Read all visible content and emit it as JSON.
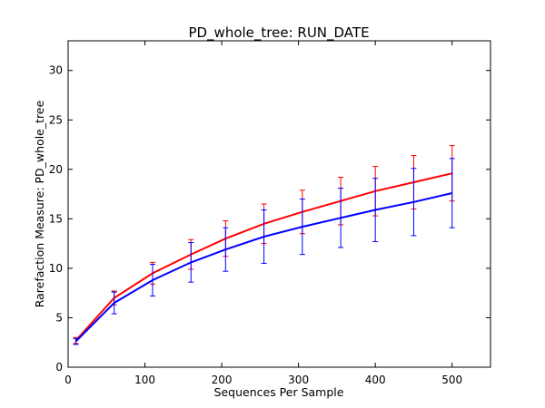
{
  "chart_data": {
    "type": "line",
    "title": "PD_whole_tree: RUN_DATE",
    "xlabel": "Sequences Per Sample",
    "ylabel": "Rarefaction Measure: PD_whole_tree",
    "xlim": [
      0,
      550
    ],
    "ylim": [
      0,
      33
    ],
    "xticks": [
      0,
      100,
      200,
      300,
      400,
      500
    ],
    "yticks": [
      0,
      5,
      10,
      15,
      20,
      25,
      30
    ],
    "grid": false,
    "x": [
      10,
      60,
      110,
      160,
      205,
      255,
      305,
      355,
      400,
      450,
      500
    ],
    "series": [
      {
        "color": "#ff0000",
        "values": [
          2.7,
          7.0,
          9.5,
          11.4,
          13.0,
          14.5,
          15.7,
          16.8,
          17.8,
          18.7,
          19.6
        ],
        "errors": [
          0.3,
          0.7,
          1.1,
          1.5,
          1.8,
          2.0,
          2.2,
          2.4,
          2.5,
          2.7,
          2.8
        ]
      },
      {
        "color": "#0000ff",
        "values": [
          2.6,
          6.5,
          8.8,
          10.6,
          11.9,
          13.2,
          14.2,
          15.1,
          15.9,
          16.7,
          17.6
        ],
        "errors": [
          0.3,
          1.1,
          1.6,
          2.0,
          2.2,
          2.7,
          2.8,
          3.0,
          3.2,
          3.4,
          3.5
        ]
      }
    ]
  }
}
